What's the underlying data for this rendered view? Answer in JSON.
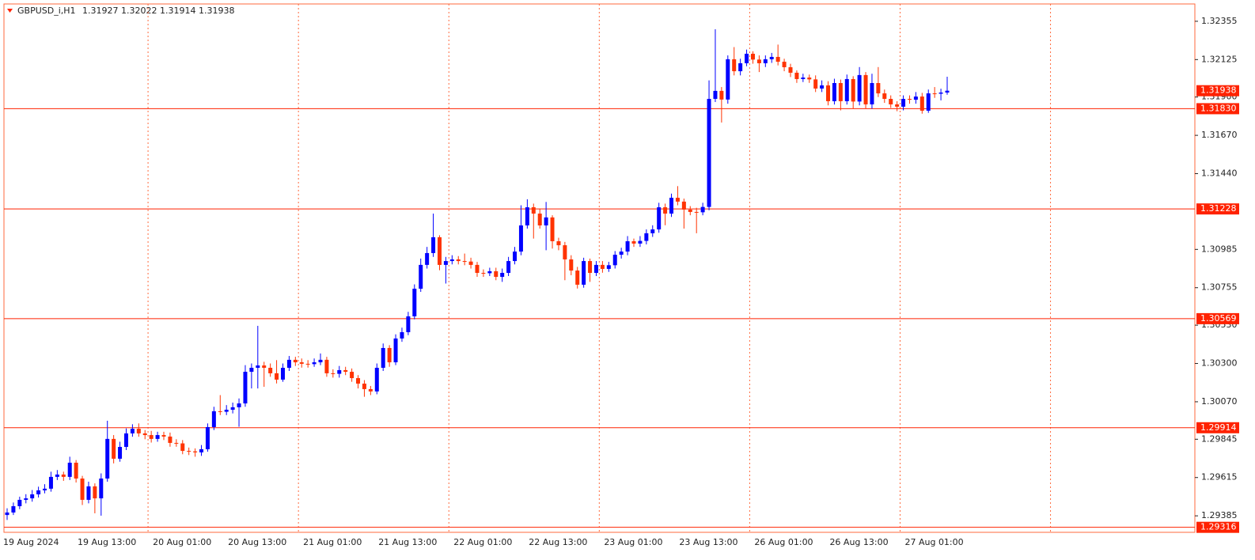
{
  "chart_data": {
    "type": "candlestick",
    "symbol": "GBPUSD_i,H1",
    "categories": [
      "19 Aug 2024",
      null,
      null,
      null,
      null,
      null,
      null,
      null,
      null,
      null,
      null,
      null,
      "19 Aug 13:00",
      null,
      null,
      null,
      null,
      null,
      null,
      null,
      null,
      null,
      null,
      null,
      "20 Aug 01:00",
      null,
      null,
      null,
      null,
      null,
      null,
      null,
      null,
      null,
      null,
      null,
      "20 Aug 13:00",
      null,
      null,
      null,
      null,
      null,
      null,
      null,
      null,
      null,
      null,
      null,
      "21 Aug 01:00",
      null,
      null,
      null,
      null,
      null,
      null,
      null,
      null,
      null,
      null,
      null,
      "21 Aug 13:00",
      null,
      null,
      null,
      null,
      null,
      null,
      null,
      null,
      null,
      null,
      null,
      "22 Aug 01:00",
      null,
      null,
      null,
      null,
      null,
      null,
      null,
      null,
      null,
      null,
      null,
      "22 Aug 13:00",
      null,
      null,
      null,
      null,
      null,
      null,
      null,
      null,
      null,
      null,
      null,
      "23 Aug 01:00",
      null,
      null,
      null,
      null,
      null,
      null,
      null,
      null,
      null,
      null,
      null,
      "23 Aug 13:00",
      null,
      null,
      null,
      null,
      null,
      null,
      null,
      null,
      null,
      null,
      null,
      "26 Aug 01:00",
      null,
      null,
      null,
      null,
      null,
      null,
      null,
      null,
      null,
      null,
      null,
      "26 Aug 13:00",
      null,
      null,
      null,
      null,
      null,
      null,
      null,
      null,
      null,
      null,
      null,
      "27 Aug 01:00",
      null,
      null,
      null,
      null,
      null,
      null
    ],
    "open": [
      1.2939,
      1.29405,
      1.29443,
      1.29481,
      1.2949,
      1.29514,
      1.29538,
      1.29548,
      1.29619,
      1.29633,
      1.29619,
      1.29704,
      1.29609,
      1.29481,
      1.29562,
      1.2949,
      1.29609,
      1.29847,
      1.29728,
      1.29799,
      1.2988,
      1.29908,
      1.2988,
      1.2987,
      1.29847,
      1.2987,
      1.29861,
      1.29823,
      1.2982,
      1.29775,
      1.29772,
      1.29766,
      1.29785,
      1.29918,
      1.30013,
      1.3001,
      1.30022,
      1.30037,
      1.3006,
      1.3025,
      1.30274,
      1.30288,
      1.30274,
      1.30241,
      1.30203,
      1.30274,
      1.30322,
      1.30307,
      1.30298,
      1.30296,
      1.30307,
      1.30322,
      1.30241,
      1.30238,
      1.3026,
      1.3025,
      1.30212,
      1.30179,
      1.30146,
      1.30132,
      1.30274,
      1.30393,
      1.30307,
      1.3045,
      1.30488,
      1.30583,
      1.30749,
      1.30892,
      1.30963,
      1.31058,
      1.30892,
      1.30915,
      1.30925,
      1.30915,
      1.30912,
      1.30892,
      1.30844,
      1.30842,
      1.30854,
      1.3082,
      1.30844,
      1.30915,
      1.30972,
      1.31129,
      1.31238,
      1.312,
      1.31129,
      1.31177,
      1.31034,
      1.3101,
      1.30925,
      1.30858,
      1.30773,
      1.30915,
      1.30844,
      1.30892,
      1.30868,
      1.3089,
      1.30953,
      1.30972,
      1.31034,
      1.3102,
      1.31036,
      1.31082,
      1.31105,
      1.31238,
      1.312,
      1.31295,
      1.31272,
      1.31224,
      1.3121,
      1.31208,
      1.3124,
      1.31889,
      1.31937,
      1.31885,
      1.32127,
      1.32055,
      1.32103,
      1.3216,
      1.32125,
      1.32103,
      1.32127,
      1.32141,
      1.32112,
      1.32079,
      1.32046,
      1.32008,
      1.32017,
      1.32006,
      1.31951,
      1.3197,
      1.31875,
      1.31984,
      1.31875,
      1.32008,
      1.31873,
      1.32032,
      1.31856,
      1.31984,
      1.31922,
      1.31889,
      1.31856,
      1.31842,
      1.31889,
      1.31884,
      1.31903,
      1.31818,
      1.31922,
      1.3192,
      1.31927
    ],
    "high": [
      1.2943,
      1.29465,
      1.295,
      1.29515,
      1.2954,
      1.2956,
      1.29575,
      1.2965,
      1.2966,
      1.2965,
      1.2974,
      1.2972,
      1.29625,
      1.2959,
      1.2958,
      1.2964,
      1.29956,
      1.2987,
      1.2983,
      1.2991,
      1.29935,
      1.2994,
      1.299,
      1.29895,
      1.2989,
      1.2989,
      1.29885,
      1.29845,
      1.2984,
      1.29795,
      1.2979,
      1.2981,
      1.2994,
      1.3004,
      1.3011,
      1.3005,
      1.30065,
      1.3009,
      1.3029,
      1.303,
      1.30526,
      1.3031,
      1.303,
      1.3032,
      1.303,
      1.30345,
      1.3034,
      1.3033,
      1.3032,
      1.3033,
      1.3036,
      1.3034,
      1.30265,
      1.30285,
      1.3028,
      1.3027,
      1.3023,
      1.302,
      1.30165,
      1.303,
      1.3042,
      1.3041,
      1.30475,
      1.30515,
      1.3061,
      1.30775,
      1.3093,
      1.31,
      1.312,
      1.3107,
      1.3094,
      1.3095,
      1.30945,
      1.3096,
      1.30935,
      1.3091,
      1.30865,
      1.30875,
      1.30875,
      1.3087,
      1.3094,
      1.31,
      1.3125,
      1.31286,
      1.3126,
      1.3123,
      1.3127,
      1.3119,
      1.31055,
      1.3103,
      1.3095,
      1.3088,
      1.30935,
      1.3093,
      1.30915,
      1.30915,
      1.3091,
      1.30975,
      1.30995,
      1.31065,
      1.3105,
      1.31065,
      1.31105,
      1.3113,
      1.31265,
      1.3126,
      1.3132,
      1.31365,
      1.3129,
      1.31245,
      1.31235,
      1.31265,
      1.32,
      1.32307,
      1.3196,
      1.3215,
      1.322,
      1.3213,
      1.32185,
      1.32175,
      1.3215,
      1.3215,
      1.32165,
      1.32215,
      1.3213,
      1.321,
      1.3206,
      1.3204,
      1.32035,
      1.3203,
      1.32,
      1.31995,
      1.3201,
      1.32005,
      1.32035,
      1.32025,
      1.3208,
      1.3205,
      1.3204,
      1.3208,
      1.31945,
      1.3191,
      1.31875,
      1.3191,
      1.3191,
      1.3193,
      1.31925,
      1.31945,
      1.3196,
      1.3195,
      1.32022
    ],
    "low": [
      1.2936,
      1.2939,
      1.29425,
      1.2946,
      1.2947,
      1.29495,
      1.2952,
      1.2953,
      1.296,
      1.29595,
      1.296,
      1.29585,
      1.2945,
      1.2946,
      1.294,
      1.29386,
      1.2959,
      1.297,
      1.2971,
      1.2978,
      1.2986,
      1.2986,
      1.29845,
      1.29825,
      1.2983,
      1.2984,
      1.298,
      1.298,
      1.29755,
      1.2975,
      1.2974,
      1.29745,
      1.2977,
      1.299,
      1.2999,
      1.2999,
      1.3,
      1.2992,
      1.3004,
      1.3015,
      1.3015,
      1.3016,
      1.3022,
      1.3018,
      1.3019,
      1.30255,
      1.30285,
      1.30275,
      1.30275,
      1.3028,
      1.3029,
      1.3022,
      1.30215,
      1.30215,
      1.3023,
      1.3019,
      1.3015,
      1.301,
      1.3011,
      1.30115,
      1.30255,
      1.3028,
      1.3029,
      1.3043,
      1.3047,
      1.30565,
      1.3073,
      1.3087,
      1.3094,
      1.3086,
      1.3078,
      1.30895,
      1.30895,
      1.3089,
      1.3087,
      1.3082,
      1.3082,
      1.30825,
      1.308,
      1.3079,
      1.30825,
      1.30895,
      1.3095,
      1.3111,
      1.3105,
      1.3111,
      1.3098,
      1.3099,
      1.3098,
      1.308,
      1.3083,
      1.3075,
      1.30755,
      1.3079,
      1.30825,
      1.30845,
      1.3085,
      1.3087,
      1.3093,
      1.3095,
      1.31,
      1.31,
      1.31015,
      1.3106,
      1.31085,
      1.3113,
      1.3118,
      1.3125,
      1.3111,
      1.3119,
      1.31082,
      1.3119,
      1.3122,
      1.3187,
      1.31747,
      1.3186,
      1.3203,
      1.3203,
      1.32085,
      1.321,
      1.3205,
      1.3208,
      1.32105,
      1.3209,
      1.32055,
      1.3202,
      1.31985,
      1.3199,
      1.31985,
      1.3193,
      1.3193,
      1.3185,
      1.31855,
      1.3182,
      1.31855,
      1.3183,
      1.3185,
      1.3183,
      1.3183,
      1.319,
      1.31865,
      1.31835,
      1.31815,
      1.3182,
      1.3186,
      1.3186,
      1.318,
      1.31805,
      1.31895,
      1.3188,
      1.31914
    ],
    "close": [
      1.29405,
      1.29443,
      1.29481,
      1.2949,
      1.29514,
      1.29538,
      1.29548,
      1.29619,
      1.29633,
      1.29619,
      1.29704,
      1.29609,
      1.29481,
      1.29562,
      1.2949,
      1.29609,
      1.29847,
      1.29728,
      1.29799,
      1.2988,
      1.29908,
      1.2988,
      1.2987,
      1.29847,
      1.2987,
      1.29861,
      1.29823,
      1.2982,
      1.29775,
      1.29772,
      1.29766,
      1.29785,
      1.29918,
      1.30013,
      1.3001,
      1.30022,
      1.30037,
      1.3006,
      1.3025,
      1.30274,
      1.30288,
      1.30274,
      1.30241,
      1.30203,
      1.30274,
      1.30322,
      1.30307,
      1.30298,
      1.30296,
      1.30307,
      1.30322,
      1.30241,
      1.30238,
      1.3026,
      1.3025,
      1.30212,
      1.30179,
      1.30146,
      1.30132,
      1.30274,
      1.30393,
      1.30307,
      1.3045,
      1.30488,
      1.30583,
      1.30749,
      1.30892,
      1.30963,
      1.31058,
      1.30892,
      1.30915,
      1.30925,
      1.30915,
      1.30912,
      1.30892,
      1.30844,
      1.30842,
      1.30854,
      1.3082,
      1.30844,
      1.30915,
      1.30972,
      1.31129,
      1.31238,
      1.312,
      1.31129,
      1.31177,
      1.31034,
      1.3101,
      1.30925,
      1.30858,
      1.30773,
      1.30915,
      1.30844,
      1.30892,
      1.30868,
      1.3089,
      1.30953,
      1.30972,
      1.31034,
      1.3102,
      1.31036,
      1.31082,
      1.31105,
      1.31238,
      1.312,
      1.31295,
      1.31272,
      1.31224,
      1.3121,
      1.31208,
      1.3124,
      1.31889,
      1.31937,
      1.31885,
      1.32127,
      1.32055,
      1.32103,
      1.3216,
      1.32125,
      1.32103,
      1.32127,
      1.32141,
      1.32112,
      1.32079,
      1.32046,
      1.32008,
      1.32017,
      1.32006,
      1.31951,
      1.3197,
      1.31875,
      1.31984,
      1.31875,
      1.32008,
      1.31873,
      1.32032,
      1.31856,
      1.31984,
      1.31922,
      1.31889,
      1.31856,
      1.31842,
      1.31889,
      1.31884,
      1.31903,
      1.31818,
      1.31922,
      1.3192,
      1.31927,
      1.31938
    ],
    "up_color": "#0000ff",
    "down_color": "#ff3300",
    "ylim": [
      1.29286,
      1.32459
    ],
    "yticks": [
      1.32355,
      1.32125,
      {
        "value": 1.319,
        "label": "1.31900"
      },
      {
        "value": 1.3167,
        "label": "1.31670"
      },
      {
        "value": 1.3144,
        "label": "1.31440"
      },
      1.30985,
      1.30755,
      {
        "value": 1.3053,
        "label": "1.30530"
      },
      {
        "value": 1.303,
        "label": "1.30300"
      },
      {
        "value": 1.3007,
        "label": "1.30070"
      },
      1.29845,
      1.29615,
      1.29385
    ],
    "levels": [
      {
        "value": 1.3183,
        "label": "1.31830"
      },
      1.31228,
      1.30569,
      1.29914,
      1.29316
    ],
    "level_color": "#ff2200",
    "grid": true
  }
}
